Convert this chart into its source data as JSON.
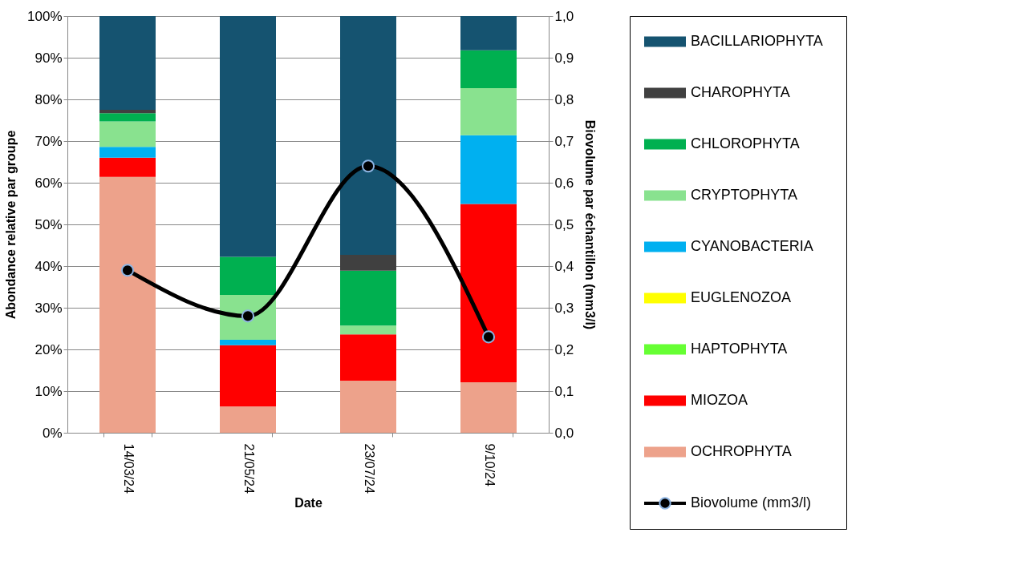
{
  "chart_data": {
    "type": "bar",
    "stacked": true,
    "xlabel": "Date",
    "ylabel": "Abondance relative par groupe",
    "y2label": "Biovolume par échantillon (mm3/l)",
    "categories": [
      "14/03/24",
      "21/05/24",
      "23/07/24",
      "9/10/24"
    ],
    "series": [
      {
        "name": "OCHROPHYTA",
        "color": "#eda28b",
        "values": [
          61.4,
          6.3,
          12.5,
          12.1
        ]
      },
      {
        "name": "MIOZOA",
        "color": "#ff0000",
        "values": [
          4.6,
          14.7,
          11.1,
          42.8
        ]
      },
      {
        "name": "HAPTOPHYTA",
        "color": "#66ff33",
        "values": [
          0,
          0,
          0,
          0
        ]
      },
      {
        "name": "EUGLENOZOA",
        "color": "#ffff00",
        "values": [
          0,
          0,
          0,
          0
        ]
      },
      {
        "name": "CYANOBACTERIA",
        "color": "#00b0f0",
        "values": [
          2.6,
          1.3,
          0,
          16.5
        ]
      },
      {
        "name": "CRYPTOPHYTA",
        "color": "#89e28f",
        "values": [
          6.1,
          10.8,
          2.1,
          11.3
        ]
      },
      {
        "name": "CHLOROPHYTA",
        "color": "#00b050",
        "values": [
          2.0,
          9.1,
          13.2,
          9.1
        ]
      },
      {
        "name": "CHAROPHYTA",
        "color": "#404040",
        "values": [
          0.8,
          0,
          3.8,
          0
        ]
      },
      {
        "name": "BACILLARIOPHYTA",
        "color": "#155370",
        "values": [
          22.5,
          57.8,
          57.3,
          8.2
        ]
      },
      {
        "name": "Biovolume (mm3/l)",
        "type": "line",
        "axis": "y2",
        "color": "#000000",
        "values": [
          0.39,
          0.28,
          0.64,
          0.23
        ]
      }
    ],
    "ylim": [
      0,
      100
    ],
    "yticks": [
      {
        "value": 0,
        "label": "0%"
      },
      {
        "value": 10,
        "label": "10%"
      },
      {
        "value": 20,
        "label": "20%"
      },
      {
        "value": 30,
        "label": "30%"
      },
      {
        "value": 40,
        "label": "40%"
      },
      {
        "value": 50,
        "label": "50%"
      },
      {
        "value": 60,
        "label": "60%"
      },
      {
        "value": 70,
        "label": "70%"
      },
      {
        "value": 80,
        "label": "80%"
      },
      {
        "value": 90,
        "label": "90%"
      },
      {
        "value": 100,
        "label": "100%"
      }
    ],
    "y2lim": [
      0,
      1
    ],
    "y2ticks": [
      {
        "value": 0,
        "label": "0,0"
      },
      {
        "value": 0.1,
        "label": "0,1"
      },
      {
        "value": 0.2,
        "label": "0,2"
      },
      {
        "value": 0.3,
        "label": "0,3"
      },
      {
        "value": 0.4,
        "label": "0,4"
      },
      {
        "value": 0.5,
        "label": "0,5"
      },
      {
        "value": 0.6,
        "label": "0,6"
      },
      {
        "value": 0.7,
        "label": "0,7"
      },
      {
        "value": 0.8,
        "label": "0,8"
      },
      {
        "value": 0.9,
        "label": "0,9"
      },
      {
        "value": 1,
        "label": "1,0"
      }
    ],
    "grid": "y",
    "legend": "right",
    "marker": "circle",
    "line_style": "solid"
  }
}
